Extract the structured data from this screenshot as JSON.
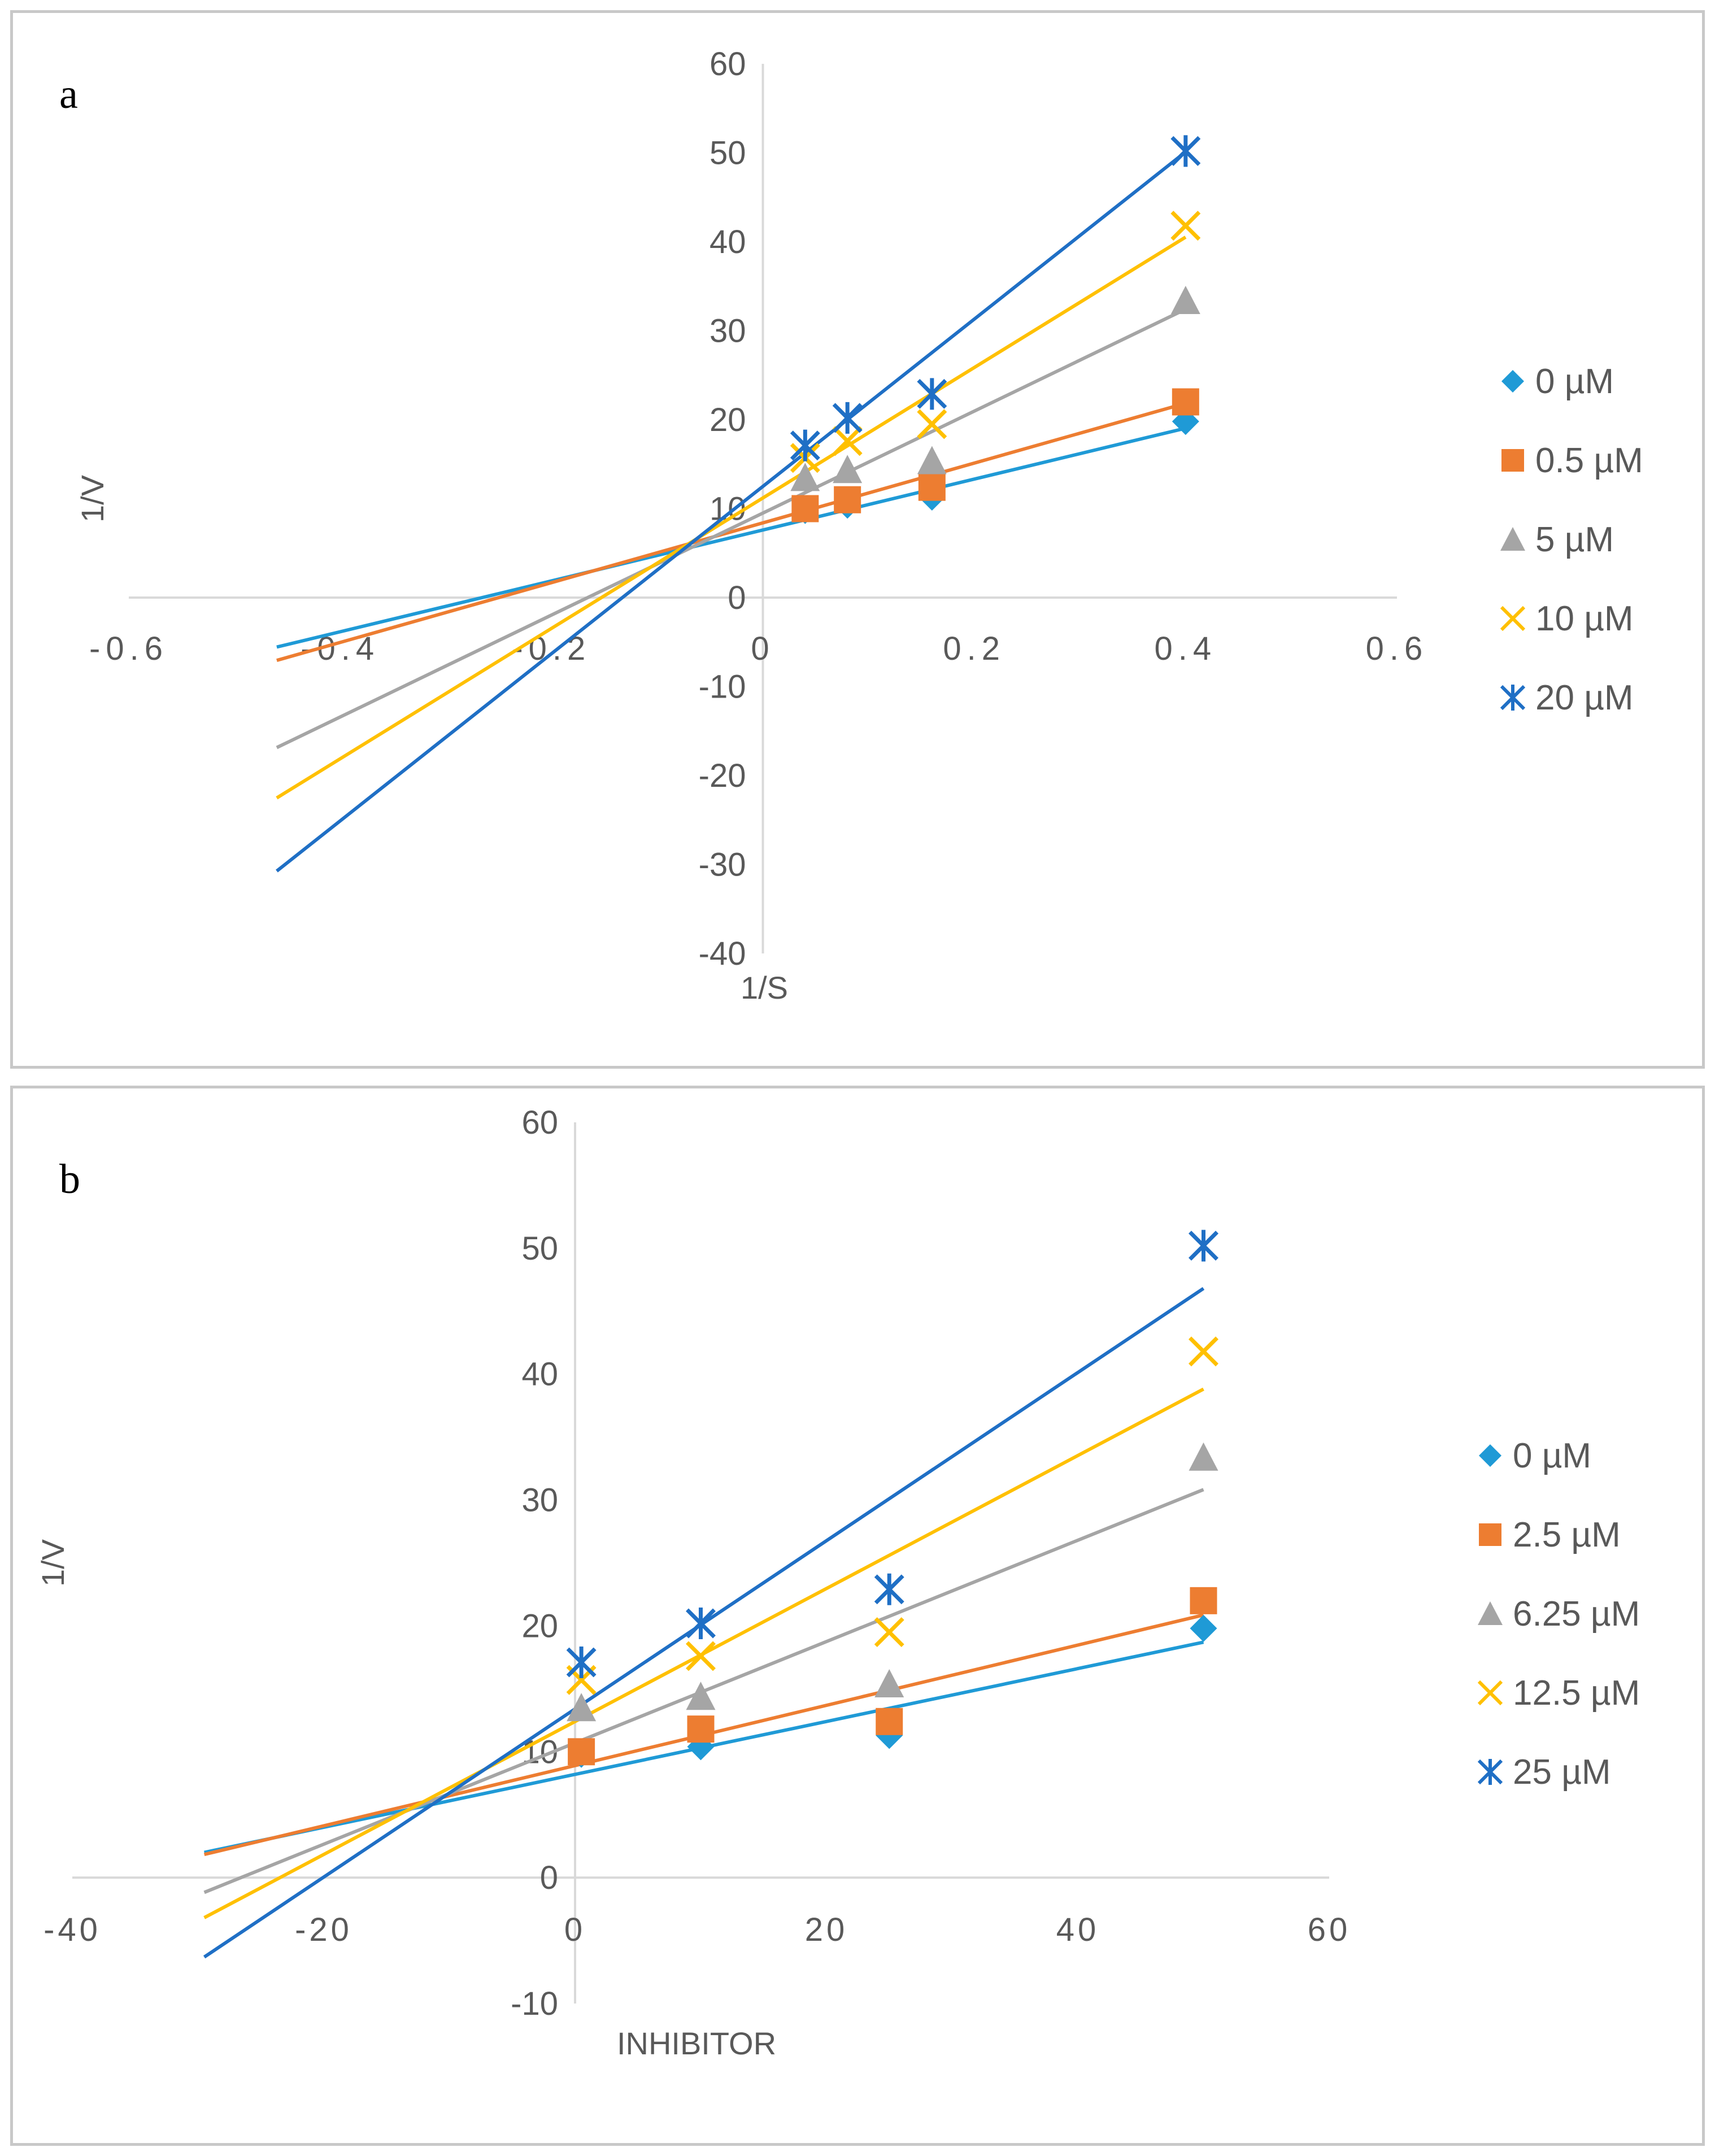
{
  "chart_data": [
    {
      "type": "scatter",
      "panel_label": "a",
      "xlabel": "1/S",
      "ylabel": "1/V",
      "xlim": [
        -0.6,
        0.6
      ],
      "ylim": [
        -40,
        60
      ],
      "x_ticks": [
        -0.6,
        -0.4,
        -0.2,
        0,
        0.2,
        0.4,
        0.6
      ],
      "x_tick_labels": [
        "-0.6",
        "-0.4",
        "-0.2",
        "0",
        "0.2",
        "0.4",
        "0.6"
      ],
      "y_ticks": [
        -40,
        -30,
        -20,
        -10,
        0,
        10,
        20,
        30,
        40,
        50,
        60
      ],
      "y_tick_labels": [
        "-40",
        "-30",
        "-20",
        "-10",
        "0",
        "10",
        "20",
        "30",
        "40",
        "50",
        "60"
      ],
      "legend_position": "right",
      "trend_x_range": [
        -0.46,
        0.4
      ],
      "series": [
        {
          "name": "0 µM",
          "color": "#1f9ad6",
          "marker": "diamond",
          "x": [
            0.04,
            0.08,
            0.16,
            0.4
          ],
          "y": [
            9.8,
            10.4,
            11.3,
            19.8
          ],
          "trend": {
            "slope": 28.6,
            "intercept": 7.6
          }
        },
        {
          "name": "0.5 µM",
          "color": "#ed7d31",
          "marker": "square",
          "x": [
            0.04,
            0.08,
            0.16,
            0.4
          ],
          "y": [
            10.0,
            11.0,
            12.4,
            22.0
          ],
          "trend": {
            "slope": 33.6,
            "intercept": 8.4
          }
        },
        {
          "name": "5 µM",
          "color": "#a5a5a5",
          "marker": "triangle",
          "x": [
            0.04,
            0.08,
            0.16,
            0.4
          ],
          "y": [
            13.5,
            14.4,
            15.4,
            33.4
          ],
          "trend": {
            "slope": 57.3,
            "intercept": 9.5
          }
        },
        {
          "name": "10 µM",
          "color": "#ffc000",
          "marker": "x",
          "x": [
            0.04,
            0.08,
            0.16,
            0.4
          ],
          "y": [
            15.7,
            17.6,
            19.5,
            41.8
          ],
          "trend": {
            "slope": 73.3,
            "intercept": 11.2
          }
        },
        {
          "name": "20 µM",
          "color": "#1f6fc5",
          "marker": "star",
          "x": [
            0.04,
            0.08,
            0.16,
            0.4
          ],
          "y": [
            17.1,
            20.2,
            22.9,
            50.2
          ],
          "trend": {
            "slope": 94.0,
            "intercept": 12.5
          }
        }
      ]
    },
    {
      "type": "scatter",
      "panel_label": "b",
      "xlabel": "INHIBITOR",
      "ylabel": "1/V",
      "xlim": [
        -40,
        60
      ],
      "ylim": [
        -10,
        60
      ],
      "x_ticks": [
        -40,
        -20,
        0,
        20,
        40,
        60
      ],
      "x_tick_labels": [
        "-40",
        "-20",
        "0",
        "20",
        "40",
        "60"
      ],
      "y_ticks": [
        -10,
        0,
        10,
        20,
        30,
        40,
        50,
        60
      ],
      "y_tick_labels": [
        "-10",
        "0",
        "10",
        "20",
        "30",
        "40",
        "50",
        "60"
      ],
      "legend_position": "right",
      "trend_x_range": [
        -29.5,
        50
      ],
      "series": [
        {
          "name": "0 µM",
          "color": "#1f9ad6",
          "marker": "diamond",
          "x": [
            0.5,
            10,
            25,
            50
          ],
          "y": [
            9.8,
            10.4,
            11.3,
            19.8
          ],
          "trend": {
            "slope": 0.2101,
            "intercept": 8.2
          }
        },
        {
          "name": "2.5 µM",
          "color": "#ed7d31",
          "marker": "square",
          "x": [
            0.5,
            10,
            25,
            50
          ],
          "y": [
            10.0,
            11.8,
            12.4,
            22.0
          ],
          "trend": {
            "slope": 0.2393,
            "intercept": 8.9
          }
        },
        {
          "name": "6.25 µM",
          "color": "#a5a5a5",
          "marker": "triangle",
          "x": [
            0.5,
            10,
            25,
            50
          ],
          "y": [
            13.5,
            14.4,
            15.4,
            33.4
          ],
          "trend": {
            "slope": 0.4025,
            "intercept": 10.7
          }
        },
        {
          "name": "12.5 µM",
          "color": "#ffc000",
          "marker": "x",
          "x": [
            0.5,
            10,
            25,
            50
          ],
          "y": [
            15.7,
            17.6,
            19.5,
            41.8
          ],
          "trend": {
            "slope": 0.5282,
            "intercept": 12.4
          }
        },
        {
          "name": "25 µM",
          "color": "#1f6fc5",
          "marker": "star",
          "x": [
            0.5,
            10,
            25,
            50
          ],
          "y": [
            17.1,
            20.2,
            22.9,
            50.2
          ],
          "trend": {
            "slope": 0.6681,
            "intercept": 13.4
          }
        }
      ]
    }
  ]
}
